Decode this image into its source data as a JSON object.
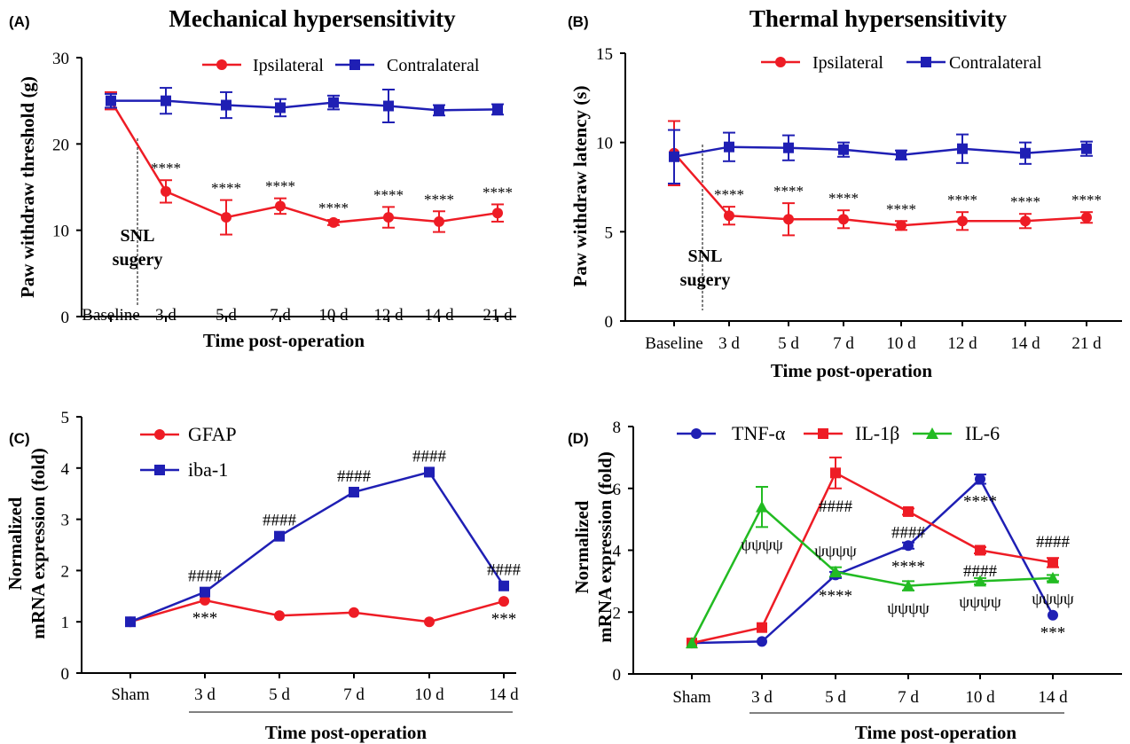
{
  "chart_data": [
    {
      "type": "line",
      "panel": "(A)",
      "title": "Mechanical hypersensitivity",
      "xlabel": "Time post-operation",
      "ylabel": "Paw withdraw threshold (g)",
      "categories": [
        "Baseline",
        "3 d",
        "5 d",
        "7 d",
        "10 d",
        "12 d",
        "14 d",
        "21 d"
      ],
      "yticks": [
        "0",
        "10",
        "20",
        "30"
      ],
      "ylim": [
        0,
        30
      ],
      "series": [
        {
          "name": "Ipsilateral",
          "color": "#ee1c25",
          "marker": "circle",
          "values": [
            25.0,
            14.5,
            11.5,
            12.8,
            10.9,
            11.5,
            11.0,
            12.0
          ],
          "errors": [
            1.0,
            1.3,
            2.0,
            0.9,
            0.3,
            1.2,
            1.2,
            1.0
          ]
        },
        {
          "name": "Contralateral",
          "color": "#1f1fb4",
          "marker": "square",
          "values": [
            25.0,
            25.0,
            24.5,
            24.2,
            24.8,
            24.4,
            23.9,
            24.0
          ],
          "errors": [
            0.8,
            1.5,
            1.5,
            1.0,
            0.8,
            1.9,
            0.6,
            0.6
          ]
        }
      ],
      "point_labels": [
        {
          "series": 0,
          "index": 1,
          "text": "****"
        },
        {
          "series": 0,
          "index": 2,
          "text": "****"
        },
        {
          "series": 0,
          "index": 3,
          "text": "****"
        },
        {
          "series": 0,
          "index": 4,
          "text": "****"
        },
        {
          "series": 0,
          "index": 5,
          "text": "****"
        },
        {
          "series": 0,
          "index": 6,
          "text": "****"
        },
        {
          "series": 0,
          "index": 7,
          "text": "****"
        }
      ],
      "annotation": [
        "SNL",
        "sugery"
      ],
      "legend_position": "top-right"
    },
    {
      "type": "line",
      "panel": "(B)",
      "title": "Thermal hypersensitivity",
      "xlabel": "Time post-operation",
      "ylabel": "Paw withdraw latency (s)",
      "categories": [
        "Baseline",
        "3 d",
        "5 d",
        "7 d",
        "10 d",
        "12 d",
        "14 d",
        "21 d"
      ],
      "yticks": [
        "0",
        "5",
        "10",
        "15"
      ],
      "ylim": [
        0,
        15
      ],
      "series": [
        {
          "name": "Ipsilateral",
          "color": "#ee1c25",
          "marker": "circle",
          "values": [
            9.4,
            5.9,
            5.7,
            5.7,
            5.35,
            5.6,
            5.6,
            5.8
          ],
          "errors": [
            1.8,
            0.5,
            0.9,
            0.5,
            0.25,
            0.5,
            0.4,
            0.3
          ]
        },
        {
          "name": "Contralateral",
          "color": "#1f1fb4",
          "marker": "square",
          "values": [
            9.2,
            9.75,
            9.7,
            9.6,
            9.3,
            9.65,
            9.4,
            9.65
          ],
          "errors": [
            1.5,
            0.8,
            0.7,
            0.4,
            0.25,
            0.8,
            0.6,
            0.4
          ]
        }
      ],
      "point_labels": [
        {
          "series": 0,
          "index": 1,
          "text": "****"
        },
        {
          "series": 0,
          "index": 2,
          "text": "****"
        },
        {
          "series": 0,
          "index": 3,
          "text": "****"
        },
        {
          "series": 0,
          "index": 4,
          "text": "****"
        },
        {
          "series": 0,
          "index": 5,
          "text": "****"
        },
        {
          "series": 0,
          "index": 6,
          "text": "****"
        },
        {
          "series": 0,
          "index": 7,
          "text": "****"
        }
      ],
      "annotation": [
        "SNL",
        "sugery"
      ],
      "legend_position": "top-right"
    },
    {
      "type": "line",
      "panel": "(C)",
      "title": "",
      "xlabel": "Time post-operation",
      "ylabel": [
        "Normalized",
        "mRNA expression (fold)"
      ],
      "categories": [
        "Sham",
        "3 d",
        "5 d",
        "7 d",
        "10 d",
        "14 d"
      ],
      "yticks": [
        "0",
        "1",
        "2",
        "3",
        "4",
        "5"
      ],
      "ylim": [
        0,
        5
      ],
      "series": [
        {
          "name": "GFAP",
          "color": "#ee1c25",
          "marker": "circle",
          "values": [
            1.0,
            1.42,
            1.12,
            1.18,
            1.0,
            1.4
          ]
        },
        {
          "name": "iba-1",
          "color": "#1f1fb4",
          "marker": "square",
          "values": [
            1.0,
            1.58,
            2.67,
            3.53,
            3.92,
            1.7
          ]
        }
      ],
      "point_labels": [
        {
          "series": 1,
          "index": 1,
          "text": "####",
          "pos": "above"
        },
        {
          "series": 1,
          "index": 2,
          "text": "####",
          "pos": "above"
        },
        {
          "series": 1,
          "index": 3,
          "text": "####",
          "pos": "above"
        },
        {
          "series": 1,
          "index": 4,
          "text": "####",
          "pos": "above"
        },
        {
          "series": 1,
          "index": 5,
          "text": "####",
          "pos": "above"
        },
        {
          "series": 0,
          "index": 1,
          "text": "***",
          "pos": "below"
        },
        {
          "series": 0,
          "index": 5,
          "text": "***",
          "pos": "below"
        }
      ],
      "legend_position": "top-left"
    },
    {
      "type": "line",
      "panel": "(D)",
      "title": "",
      "xlabel": "Time post-operation",
      "ylabel": [
        "Normalized",
        "mRNA expression (fold)"
      ],
      "categories": [
        "Sham",
        "3 d",
        "5 d",
        "7 d",
        "10 d",
        "14 d"
      ],
      "yticks": [
        "0",
        "2",
        "4",
        "6",
        "8"
      ],
      "ylim": [
        0,
        8
      ],
      "series": [
        {
          "name": "TNF-α",
          "color": "#1f1fb4",
          "marker": "circle",
          "values": [
            1.0,
            1.05,
            3.2,
            4.15,
            6.3,
            1.9
          ],
          "errors": [
            0,
            0,
            0.1,
            0.1,
            0.15,
            0
          ]
        },
        {
          "name": "IL-1β",
          "color": "#ee1c25",
          "marker": "square",
          "values": [
            1.0,
            1.5,
            6.5,
            5.25,
            4.0,
            3.6
          ],
          "errors": [
            0,
            0,
            0.5,
            0.1,
            0.1,
            0.15
          ]
        },
        {
          "name": "IL-6",
          "color": "#22bb22",
          "marker": "triangle",
          "values": [
            1.0,
            5.4,
            3.3,
            2.85,
            3.0,
            3.1
          ],
          "errors": [
            0,
            0.65,
            0.15,
            0.15,
            0.1,
            0.1
          ]
        }
      ],
      "point_labels": [
        {
          "series": 1,
          "index": 2,
          "text": "####",
          "pos": "below"
        },
        {
          "series": 1,
          "index": 3,
          "text": "####",
          "pos": "below"
        },
        {
          "series": 1,
          "index": 4,
          "text": "####",
          "pos": "below"
        },
        {
          "series": 1,
          "index": 5,
          "text": "####",
          "pos": "above"
        },
        {
          "series": 0,
          "index": 2,
          "text": "****",
          "pos": "below"
        },
        {
          "series": 0,
          "index": 3,
          "text": "****",
          "pos": "below"
        },
        {
          "series": 0,
          "index": 4,
          "text": "****",
          "pos": "below"
        },
        {
          "series": 0,
          "index": 5,
          "text": "***",
          "pos": "below"
        },
        {
          "series": 2,
          "index": 1,
          "text": "ψψψψ",
          "pos": "below"
        },
        {
          "series": 2,
          "index": 2,
          "text": "ψψψψ",
          "pos": "above"
        },
        {
          "series": 2,
          "index": 3,
          "text": "ψψψψ",
          "pos": "below"
        },
        {
          "series": 2,
          "index": 4,
          "text": "ψψψψ",
          "pos": "below"
        },
        {
          "series": 2,
          "index": 5,
          "text": "ψψψψ",
          "pos": "below"
        }
      ],
      "legend_position": "top"
    }
  ]
}
